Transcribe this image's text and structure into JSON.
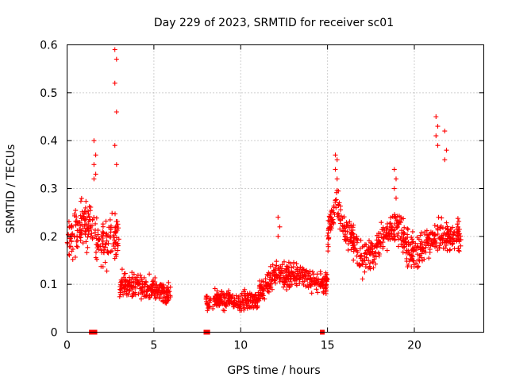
{
  "chart_data": {
    "type": "scatter",
    "title": "Day 229 of 2023, SRMTID for receiver sc01",
    "xlabel": "GPS time / hours",
    "ylabel": "SRMTID / TECUs",
    "xlim": [
      0,
      24
    ],
    "ylim": [
      0,
      0.6
    ],
    "xticks": [
      "0",
      "5",
      "10",
      "15",
      "20"
    ],
    "yticks": [
      "0",
      "0.1",
      "0.2",
      "0.3",
      "0.4",
      "0.5",
      "0.6"
    ],
    "grid": true,
    "marker": "plus",
    "series_color": "#ff0000",
    "segments": [
      {
        "x_start": 0.0,
        "x_end": 3.0,
        "trend": [
          [
            0.0,
            0.19
          ],
          [
            0.5,
            0.21
          ],
          [
            1.0,
            0.23
          ],
          [
            1.5,
            0.22
          ],
          [
            2.0,
            0.18
          ],
          [
            2.5,
            0.19
          ],
          [
            3.0,
            0.2
          ]
        ],
        "spread": 0.07
      },
      {
        "x_start": 3.0,
        "x_end": 6.0,
        "trend": [
          [
            3.0,
            0.1
          ],
          [
            4.0,
            0.1
          ],
          [
            5.0,
            0.09
          ],
          [
            6.0,
            0.08
          ]
        ],
        "spread": 0.035
      },
      {
        "x_start": 8.0,
        "x_end": 11.0,
        "trend": [
          [
            8.0,
            0.06
          ],
          [
            9.0,
            0.07
          ],
          [
            10.0,
            0.06
          ],
          [
            11.0,
            0.07
          ]
        ],
        "spread": 0.03
      },
      {
        "x_start": 11.0,
        "x_end": 15.0,
        "trend": [
          [
            11.0,
            0.08
          ],
          [
            12.0,
            0.12
          ],
          [
            13.0,
            0.12
          ],
          [
            14.0,
            0.11
          ],
          [
            15.0,
            0.1
          ]
        ],
        "spread": 0.035
      },
      {
        "x_start": 15.0,
        "x_end": 18.0,
        "trend": [
          [
            15.0,
            0.2
          ],
          [
            15.5,
            0.27
          ],
          [
            16.0,
            0.22
          ],
          [
            17.0,
            0.15
          ],
          [
            18.0,
            0.18
          ]
        ],
        "spread": 0.05
      },
      {
        "x_start": 18.0,
        "x_end": 22.7,
        "trend": [
          [
            18.0,
            0.2
          ],
          [
            19.0,
            0.22
          ],
          [
            20.0,
            0.16
          ],
          [
            21.0,
            0.2
          ],
          [
            22.0,
            0.2
          ],
          [
            22.7,
            0.2
          ]
        ],
        "spread": 0.05
      }
    ],
    "peaks": [
      {
        "x": 1.6,
        "y": [
          0.4,
          0.37,
          0.35,
          0.33,
          0.32
        ]
      },
      {
        "x": 2.8,
        "y": [
          0.59,
          0.57,
          0.52,
          0.46,
          0.39,
          0.35
        ]
      },
      {
        "x": 12.2,
        "y": [
          0.24,
          0.22,
          0.2
        ]
      },
      {
        "x": 15.5,
        "y": [
          0.37,
          0.36,
          0.34,
          0.32
        ]
      },
      {
        "x": 18.9,
        "y": [
          0.34,
          0.32,
          0.3,
          0.28
        ]
      },
      {
        "x": 21.3,
        "y": [
          0.45,
          0.43,
          0.41,
          0.39
        ]
      },
      {
        "x": 21.8,
        "y": [
          0.42,
          0.38,
          0.36
        ]
      }
    ],
    "zero_markers": [
      1.4,
      1.6,
      8.0,
      8.1,
      14.7
    ]
  }
}
